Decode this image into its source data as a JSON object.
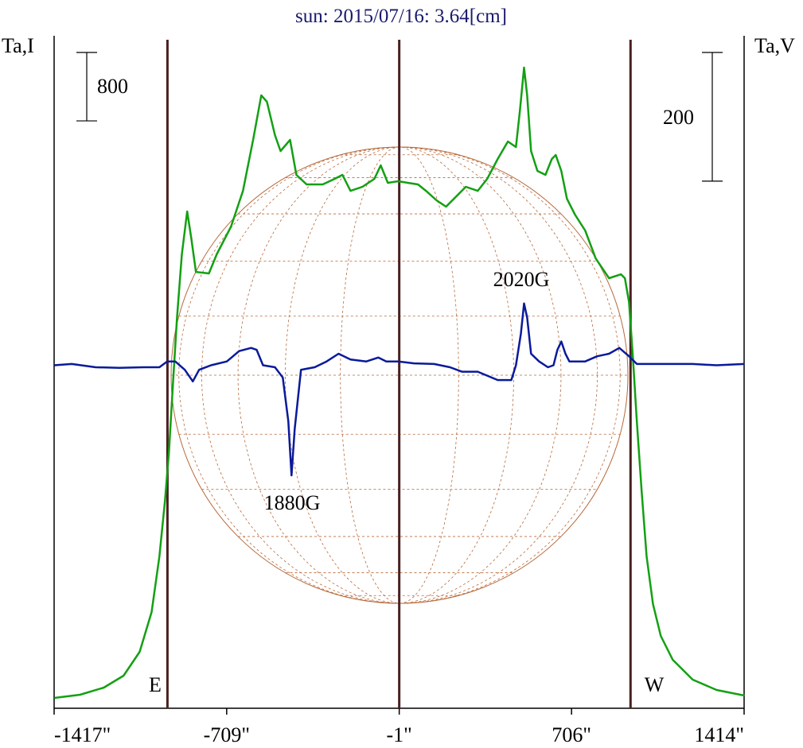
{
  "chart_data": {
    "type": "line",
    "title": "sun: 2015/07/16: 3.64[cm]",
    "y_label": "Ta,I",
    "y2_label": "Ta,V",
    "xlim": [
      -1417,
      1414
    ],
    "xticks": [
      {
        "value": -1417,
        "label": "-1417\""
      },
      {
        "value": -709,
        "label": "-709\""
      },
      {
        "value": -1,
        "label": "-1\""
      },
      {
        "value": 706,
        "label": "706\""
      },
      {
        "value": 1414,
        "label": "1414\""
      }
    ],
    "ylim": [
      0,
      7900
    ],
    "y2lim": [
      -535,
      515
    ],
    "y_scale_bar": 800,
    "y2_scale_bar": 200,
    "vlines": [
      -952,
      -1,
      948
    ],
    "annotations": [
      "E",
      "W",
      "1880G",
      "2020G"
    ],
    "series": [
      {
        "color": "#13a013",
        "axis": "y",
        "x": [
          -1416,
          -1311,
          -1213,
          -1132,
          -1066,
          -1017,
          -985,
          -962,
          -946,
          -929,
          -913,
          -893,
          -871,
          -854,
          -835,
          -782,
          -750,
          -691,
          -642,
          -600,
          -567,
          -544,
          -511,
          -488,
          -449,
          -423,
          -381,
          -315,
          -266,
          -234,
          -201,
          -152,
          -103,
          -77,
          -48,
          -5,
          34,
          76,
          109,
          152,
          191,
          223,
          272,
          321,
          360,
          403,
          445,
          478,
          494,
          511,
          524,
          540,
          566,
          599,
          625,
          641,
          664,
          687,
          720,
          762,
          805,
          860,
          909,
          925,
          942,
          958,
          974,
          994,
          1014,
          1040,
          1072,
          1121,
          1203,
          1301,
          1415
        ],
        "values": [
          121,
          158,
          242,
          381,
          660,
          1125,
          1775,
          2426,
          2983,
          3820,
          4563,
          5307,
          5809,
          5493,
          5102,
          5084,
          5307,
          5632,
          6050,
          6654,
          7166,
          7091,
          6701,
          6515,
          6645,
          6236,
          6125,
          6125,
          6190,
          6236,
          6050,
          6097,
          6190,
          6348,
          6143,
          6162,
          6143,
          6125,
          6050,
          5939,
          5865,
          5957,
          6097,
          6050,
          6190,
          6422,
          6627,
          6562,
          6980,
          7491,
          7166,
          6515,
          6283,
          6236,
          6422,
          6469,
          6283,
          5957,
          5772,
          5586,
          5260,
          5028,
          5074,
          5028,
          4749,
          4099,
          3355,
          2519,
          1775,
          1218,
          846,
          567,
          335,
          214,
          149
        ]
      },
      {
        "color": "#0a1a9a",
        "axis": "y2",
        "x": [
          -1416,
          -1345,
          -1247,
          -1149,
          -1050,
          -985,
          -953,
          -920,
          -881,
          -848,
          -822,
          -773,
          -708,
          -658,
          -609,
          -586,
          -560,
          -511,
          -479,
          -456,
          -443,
          -430,
          -404,
          -348,
          -299,
          -250,
          -201,
          -136,
          -87,
          -54,
          -5,
          60,
          142,
          207,
          256,
          321,
          403,
          459,
          478,
          498,
          511,
          524,
          540,
          573,
          609,
          632,
          648,
          664,
          681,
          697,
          762,
          811,
          860,
          902,
          942,
          974,
          1072,
          1203,
          1301,
          1415
        ],
        "values": [
          -2,
          0,
          -5,
          -6,
          -5,
          -5,
          4,
          4,
          -9,
          -27,
          -9,
          -2,
          4,
          20,
          25,
          22,
          -2,
          -5,
          -21,
          -89,
          -173,
          -101,
          -9,
          -5,
          4,
          16,
          7,
          4,
          10,
          4,
          4,
          1,
          0,
          -5,
          -12,
          -12,
          -25,
          -25,
          -2,
          47,
          94,
          72,
          16,
          4,
          -5,
          -2,
          22,
          35,
          16,
          4,
          4,
          12,
          16,
          25,
          12,
          0,
          0,
          0,
          -2,
          0
        ]
      }
    ]
  }
}
